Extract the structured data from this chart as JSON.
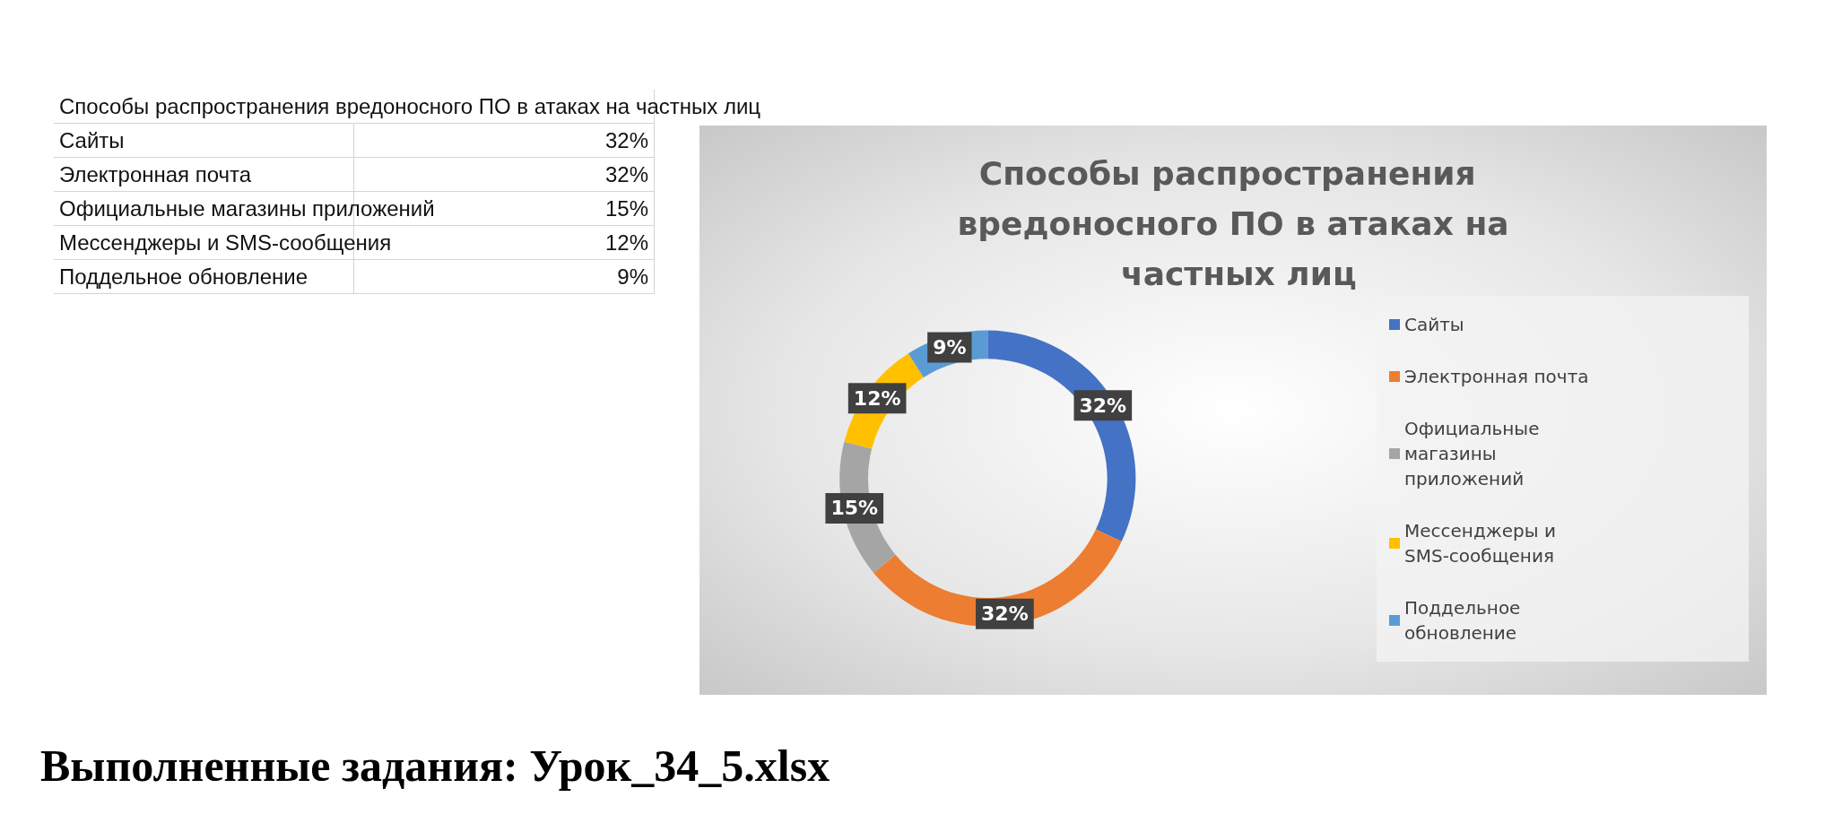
{
  "chart_data": {
    "type": "donut",
    "title": "Способы распространения вредоносного ПО в атаках на частных лиц",
    "categories": [
      "Сайты",
      "Электронная почта",
      "Официальные магазины приложений",
      "Мессенджеры и SMS-сообщения",
      "Поддельное обновление"
    ],
    "values": [
      32,
      32,
      15,
      12,
      9
    ],
    "value_labels": [
      "32%",
      "32%",
      "15%",
      "12%",
      "9%"
    ],
    "colors": [
      "#4472c4",
      "#ed7d31",
      "#a5a5a5",
      "#ffc000",
      "#5b9bd5"
    ],
    "legend": "right",
    "annotations": [
      "Выполненные задания: Урок_34_5.xlsx"
    ]
  }
}
